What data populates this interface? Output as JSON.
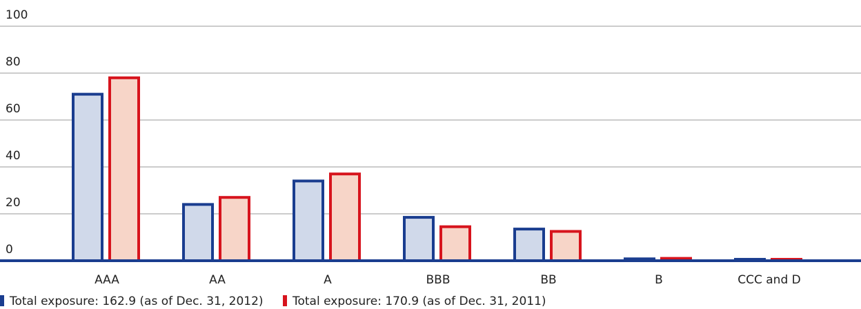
{
  "chart_data": {
    "type": "bar",
    "categories": [
      "AAA",
      "AA",
      "A",
      "BBB",
      "BB",
      "B",
      "CCC and D"
    ],
    "series": [
      {
        "name": "Total exposure: 162.9 (as of Dec. 31, 2012)",
        "color": "#1a3d8f",
        "fill": "#d0d9ea",
        "values": [
          71,
          24,
          34,
          18.5,
          13.5,
          0.8,
          0.6
        ]
      },
      {
        "name": "Total exposure: 170.9 (as of Dec. 31, 2011)",
        "color": "#d7141d",
        "fill": "#f7d5c8",
        "values": [
          78,
          27,
          37,
          14.5,
          12.5,
          1,
          0.6
        ]
      }
    ],
    "ylim": [
      0,
      100
    ],
    "yticks": [
      0,
      20,
      40,
      60,
      80,
      100
    ],
    "grid": true,
    "legend": "bottom"
  }
}
